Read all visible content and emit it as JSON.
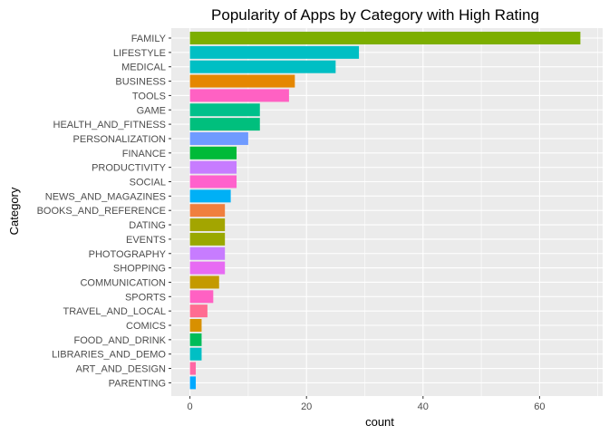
{
  "chart_data": {
    "type": "bar",
    "orientation": "horizontal",
    "title": "Popularity of Apps by Category with High Rating",
    "xlabel": "count",
    "ylabel": "Category",
    "xlim": [
      0,
      70
    ],
    "xticks": [
      0,
      20,
      40,
      60
    ],
    "grid": true,
    "legend": "none",
    "panel_background": "#ebebeb",
    "grid_color": "#ffffff",
    "categories": [
      "FAMILY",
      "LIFESTYLE",
      "MEDICAL",
      "BUSINESS",
      "TOOLS",
      "GAME",
      "HEALTH_AND_FITNESS",
      "PERSONALIZATION",
      "FINANCE",
      "PRODUCTIVITY",
      "SOCIAL",
      "NEWS_AND_MAGAZINES",
      "BOOKS_AND_REFERENCE",
      "DATING",
      "EVENTS",
      "PHOTOGRAPHY",
      "SHOPPING",
      "COMMUNICATION",
      "SPORTS",
      "TRAVEL_AND_LOCAL",
      "COMICS",
      "FOOD_AND_DRINK",
      "LIBRARIES_AND_DEMO",
      "ART_AND_DESIGN",
      "PARENTING"
    ],
    "values": [
      67,
      29,
      25,
      18,
      17,
      12,
      12,
      10,
      8,
      8,
      8,
      7,
      6,
      6,
      6,
      6,
      6,
      5,
      4,
      3,
      2,
      2,
      2,
      1,
      1
    ],
    "colors": [
      "#7CAE00",
      "#00BFC4",
      "#00BFC4",
      "#E58700",
      "#FF61C3",
      "#00C08B",
      "#00BF7D",
      "#6F9BFF",
      "#00BA38",
      "#C77CFF",
      "#FF61CC",
      "#00B0F6",
      "#F07F3E",
      "#A3A500",
      "#99A800",
      "#C77CFF",
      "#E76BF3",
      "#C49A00",
      "#FF61C3",
      "#FF6C91",
      "#D89000",
      "#00BC5A",
      "#00BFC4",
      "#FF67A4",
      "#00A9FF"
    ]
  }
}
